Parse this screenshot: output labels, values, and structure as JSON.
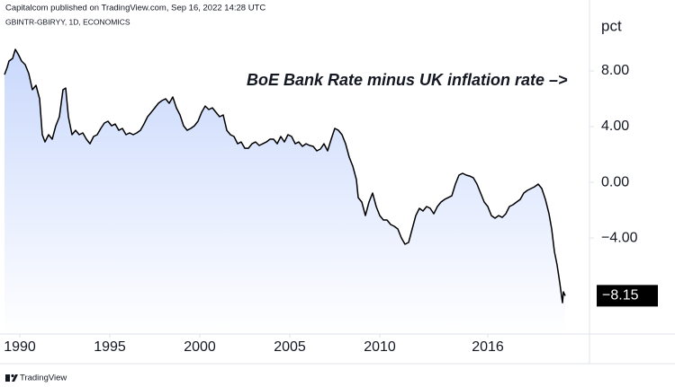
{
  "header": {
    "publisher": "Capitalcom published on TradingView.com, Sep 16, 2022 14:28 UTC",
    "symbol": "GBINTR-GBIRYY, 1D, ECONOMICS"
  },
  "footer": {
    "brand": "TradingView"
  },
  "chart_data": {
    "type": "area",
    "annotation": "BoE Bank Rate minus UK inflation rate –>",
    "y_axis_label": "pct",
    "color": "#000000",
    "fill_color": "#c9d8fc",
    "last_label": "−8.15",
    "xlim": [
      1989.15,
      2021.65
    ],
    "ylim": [
      -10.9,
      12.13
    ],
    "xticks": [
      1990,
      1995,
      2000,
      2005,
      2010,
      2016
    ],
    "yticks": [
      {
        "value": 8,
        "label": "8.00"
      },
      {
        "value": 4,
        "label": "4.00"
      },
      {
        "value": 0,
        "label": "0.00"
      },
      {
        "value": -4,
        "label": "−4.00"
      }
    ],
    "x": [
      1989.15,
      1989.3,
      1989.4,
      1989.6,
      1989.75,
      1989.9,
      1990.1,
      1990.3,
      1990.5,
      1990.7,
      1990.9,
      1991.1,
      1991.25,
      1991.4,
      1991.6,
      1991.8,
      1992.0,
      1992.2,
      1992.4,
      1992.55,
      1992.7,
      1992.9,
      1993.1,
      1993.3,
      1993.5,
      1993.7,
      1993.9,
      1994.1,
      1994.3,
      1994.5,
      1994.7,
      1994.9,
      1995.1,
      1995.3,
      1995.5,
      1995.7,
      1995.9,
      1996.1,
      1996.3,
      1996.5,
      1996.7,
      1996.9,
      1997.1,
      1997.3,
      1997.5,
      1997.7,
      1997.9,
      1998.1,
      1998.3,
      1998.5,
      1998.7,
      1998.9,
      1999.1,
      1999.3,
      1999.5,
      1999.7,
      1999.9,
      2000.1,
      2000.3,
      2000.5,
      2000.7,
      2000.9,
      2001.1,
      2001.3,
      2001.5,
      2001.7,
      2001.9,
      2002.1,
      2002.3,
      2002.5,
      2002.7,
      2002.9,
      2003.1,
      2003.3,
      2003.5,
      2003.7,
      2003.9,
      2004.1,
      2004.3,
      2004.5,
      2004.7,
      2004.9,
      2005.1,
      2005.3,
      2005.5,
      2005.7,
      2005.9,
      2006.1,
      2006.3,
      2006.5,
      2006.7,
      2006.9,
      2007.1,
      2007.3,
      2007.5,
      2007.7,
      2007.9,
      2008.1,
      2008.3,
      2008.5,
      2008.7,
      2008.8,
      2009.0,
      2009.2,
      2009.4,
      2009.6,
      2009.8,
      2010.0,
      2010.2,
      2010.4,
      2010.6,
      2010.8,
      2011.0,
      2011.2,
      2011.4,
      2011.6,
      2011.8,
      2012.0,
      2012.2,
      2012.4,
      2012.6,
      2012.8,
      2013.0,
      2013.2,
      2013.4,
      2013.6,
      2013.8,
      2014.0,
      2014.2,
      2014.4,
      2014.6,
      2014.8,
      2015.0,
      2015.2,
      2015.4,
      2015.6,
      2015.8,
      2016.0,
      2016.2,
      2016.4,
      2016.6,
      2016.8,
      2017.0,
      2017.2,
      2017.4,
      2017.6,
      2017.8,
      2018.0,
      2018.2,
      2018.4,
      2018.6,
      2018.8,
      2019.0,
      2019.2,
      2019.4,
      2019.55,
      2019.7,
      2019.85,
      2020.0,
      2020.1,
      2020.15,
      2020.2,
      2020.3
    ],
    "values": [
      7.74,
      8.26,
      8.71,
      8.9,
      9.55,
      9.23,
      8.71,
      8.45,
      7.81,
      6.65,
      6.97,
      6.0,
      3.42,
      2.9,
      3.42,
      3.1,
      4.06,
      4.71,
      6.65,
      6.77,
      4.71,
      3.42,
      3.74,
      3.42,
      3.55,
      3.1,
      2.77,
      3.29,
      3.42,
      3.87,
      4.26,
      4.39,
      4.06,
      4.19,
      3.74,
      3.87,
      3.42,
      3.55,
      3.42,
      3.55,
      3.74,
      4.19,
      4.71,
      5.03,
      5.35,
      5.68,
      5.87,
      6.0,
      5.68,
      6.13,
      5.35,
      4.84,
      4.06,
      3.74,
      3.87,
      4.06,
      4.39,
      5.03,
      5.48,
      5.23,
      5.35,
      5.03,
      4.71,
      4.84,
      3.74,
      3.42,
      3.29,
      2.77,
      2.9,
      2.45,
      2.45,
      2.77,
      2.9,
      2.65,
      2.77,
      2.9,
      3.1,
      3.1,
      2.77,
      3.29,
      2.9,
      3.42,
      3.29,
      2.77,
      2.9,
      2.58,
      2.77,
      2.65,
      2.58,
      2.26,
      2.39,
      2.77,
      2.26,
      3.1,
      3.87,
      3.74,
      3.42,
      2.77,
      1.81,
      1.16,
      0.19,
      -1.1,
      -1.42,
      -2.39,
      -1.42,
      -0.77,
      -1.74,
      -2.39,
      -2.71,
      -2.71,
      -3.03,
      -3.16,
      -3.35,
      -4.0,
      -4.45,
      -4.32,
      -3.35,
      -2.39,
      -1.87,
      -2.06,
      -1.74,
      -1.87,
      -2.26,
      -1.74,
      -1.42,
      -1.23,
      -1.1,
      -0.97,
      -0.13,
      0.52,
      0.65,
      0.52,
      0.45,
      0.32,
      -0.13,
      -0.77,
      -1.42,
      -1.74,
      -2.39,
      -2.58,
      -2.39,
      -2.52,
      -2.26,
      -1.74,
      -1.61,
      -1.42,
      -1.23,
      -0.77,
      -0.58,
      -0.45,
      -0.32,
      -0.13,
      -0.45,
      -1.23,
      -2.26,
      -3.35,
      -4.97,
      -5.94,
      -7.23,
      -8.19,
      -8.65,
      -7.87,
      -8.15
    ]
  }
}
